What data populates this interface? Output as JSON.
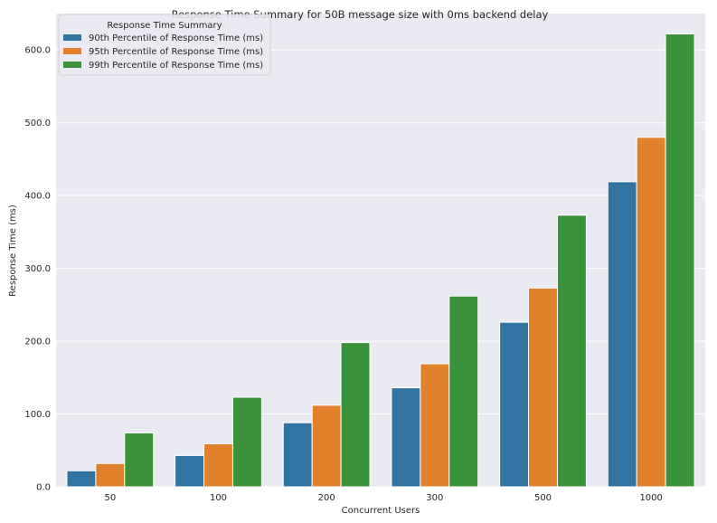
{
  "chart_data": {
    "type": "bar",
    "title": "Response Time Summary for 50B message size with 0ms backend delay",
    "xlabel": "Concurrent Users",
    "ylabel": "Response Time (ms)",
    "categories": [
      "50",
      "100",
      "200",
      "300",
      "500",
      "1000"
    ],
    "ylim": [
      0,
      650
    ],
    "yticks": [
      "0.0",
      "100.0",
      "200.0",
      "300.0",
      "400.0",
      "500.0",
      "600.0"
    ],
    "grid": true,
    "legend": {
      "title": "Response Time Summary",
      "placement": "top-left"
    },
    "series": [
      {
        "name": "90th Percentile of Response Time (ms)",
        "color": "#3274a1",
        "values": [
          22,
          43,
          88,
          136,
          226,
          419
        ]
      },
      {
        "name": "95th Percentile of Response Time (ms)",
        "color": "#e1812c",
        "values": [
          32,
          59,
          112,
          169,
          273,
          480
        ]
      },
      {
        "name": "99th Percentile of Response Time (ms)",
        "color": "#3a923a",
        "values": [
          74,
          123,
          198,
          262,
          373,
          622
        ]
      }
    ]
  }
}
